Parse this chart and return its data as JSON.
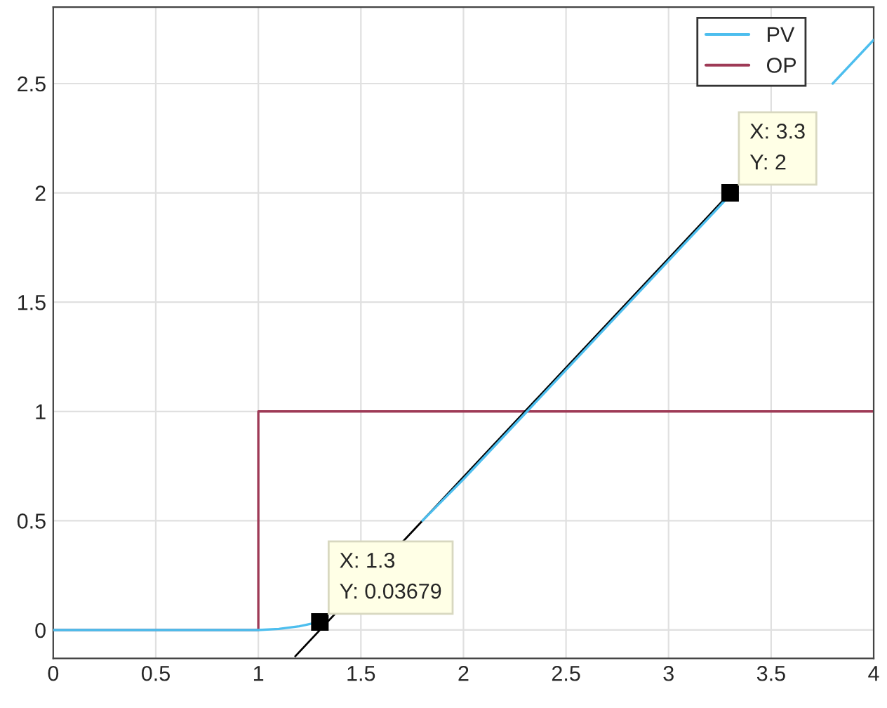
{
  "chart_data": {
    "type": "line",
    "xlim": [
      0,
      4
    ],
    "ylim": [
      -0.13,
      2.85
    ],
    "xticks": [
      0,
      0.5,
      1,
      1.5,
      2,
      2.5,
      3,
      3.5,
      4
    ],
    "yticks": [
      0,
      0.5,
      1,
      1.5,
      2,
      2.5
    ],
    "grid": true,
    "legend": "top right",
    "series": [
      {
        "name": "PV",
        "color": "#4dbeee",
        "x": [
          0,
          1,
          1.1,
          1.2,
          1.3,
          1.5,
          1.8,
          2,
          2.5,
          3,
          3.3,
          3.55,
          3.8,
          4
        ],
        "values": [
          0,
          0,
          0.005,
          0.017,
          0.037,
          null,
          0.5,
          0.69,
          1.19,
          1.69,
          1.99,
          null,
          2.5,
          2.7
        ]
      },
      {
        "name": "OP",
        "type": "step",
        "color": "#9e3a56",
        "x": [
          0,
          1,
          4
        ],
        "values": [
          0,
          1,
          1
        ]
      },
      {
        "type": "line",
        "color": "#000000",
        "x": [
          1.18,
          3.3
        ],
        "values": [
          -0.12,
          2
        ]
      }
    ],
    "annotations": [
      {
        "text": "X: 1.3\nY: 0.03679",
        "x": 1.3,
        "y": 0.03679
      },
      {
        "text": "X: 3.3\nY: 2",
        "x": 3.3,
        "y": 2
      }
    ]
  }
}
